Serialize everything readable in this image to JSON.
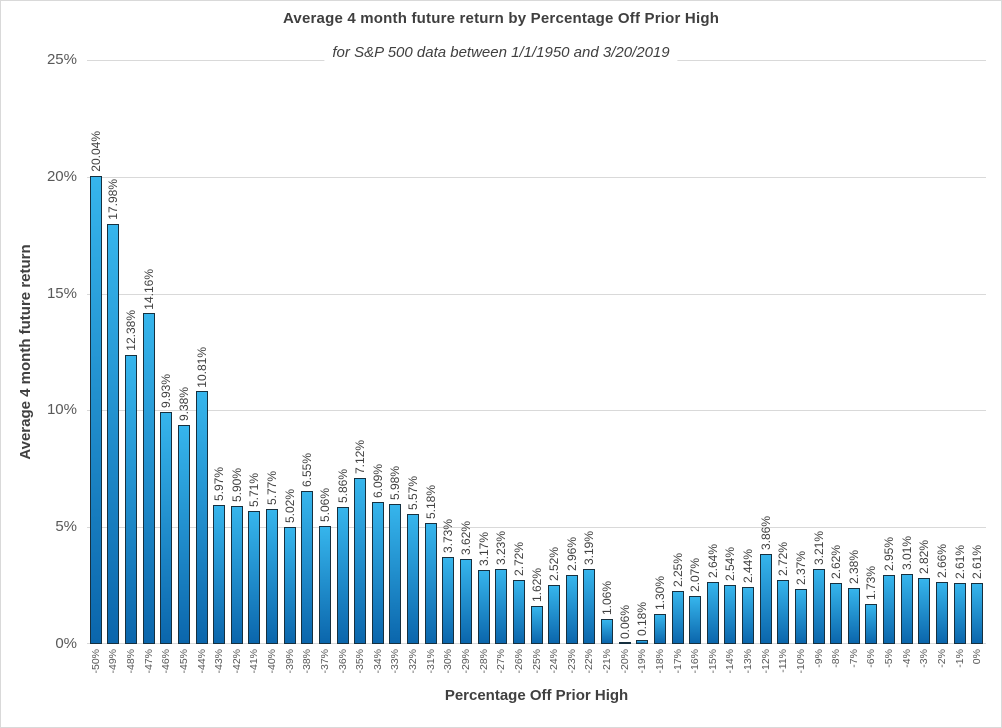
{
  "chart_data": {
    "type": "bar",
    "title": "Average 4 month future return by Percentage Off Prior High",
    "subtitle": "for S&P 500 data between 1/1/1950 and 3/20/2019",
    "xlabel": "Percentage Off Prior High",
    "ylabel": "Average 4 month future return",
    "ylim": [
      0,
      25
    ],
    "ytick_step": 5,
    "ytick_labels": [
      "0%",
      "5%",
      "10%",
      "15%",
      "20%",
      "25%"
    ],
    "grid": true,
    "legend_position": "none",
    "data_label_suffix": "%",
    "categories": [
      "-50%",
      "-49%",
      "-48%",
      "-47%",
      "-46%",
      "-45%",
      "-44%",
      "-43%",
      "-42%",
      "-41%",
      "-40%",
      "-39%",
      "-38%",
      "-37%",
      "-36%",
      "-35%",
      "-34%",
      "-33%",
      "-32%",
      "-31%",
      "-30%",
      "-29%",
      "-28%",
      "-27%",
      "-26%",
      "-25%",
      "-24%",
      "-23%",
      "-22%",
      "-21%",
      "-20%",
      "-19%",
      "-18%",
      "-17%",
      "-16%",
      "-15%",
      "-14%",
      "-13%",
      "-12%",
      "-11%",
      "-10%",
      "-9%",
      "-8%",
      "-7%",
      "-6%",
      "-5%",
      "-4%",
      "-3%",
      "-2%",
      "-1%",
      "0%"
    ],
    "values": [
      20.04,
      17.98,
      12.38,
      14.16,
      9.93,
      9.38,
      10.81,
      5.97,
      5.9,
      5.71,
      5.77,
      5.02,
      6.55,
      5.06,
      5.86,
      7.12,
      6.09,
      5.98,
      5.57,
      5.18,
      3.73,
      3.62,
      3.17,
      3.23,
      2.72,
      1.62,
      2.52,
      2.96,
      3.19,
      1.06,
      0.06,
      0.18,
      1.3,
      2.25,
      2.07,
      2.64,
      2.54,
      2.44,
      3.86,
      2.72,
      2.37,
      3.21,
      2.62,
      2.38,
      1.73,
      2.95,
      3.01,
      2.82,
      2.66,
      2.61,
      2.61
    ]
  },
  "style": {
    "bar_fill_top": "#36B5EC",
    "bar_fill_bottom": "#0B66AC",
    "bar_border": "#16303F",
    "gridline_color": "#D9D9D9",
    "title_color": "#3F3F3F",
    "tick_color": "#595959",
    "data_label_color": "#404040",
    "background": "#FFFFFF"
  }
}
